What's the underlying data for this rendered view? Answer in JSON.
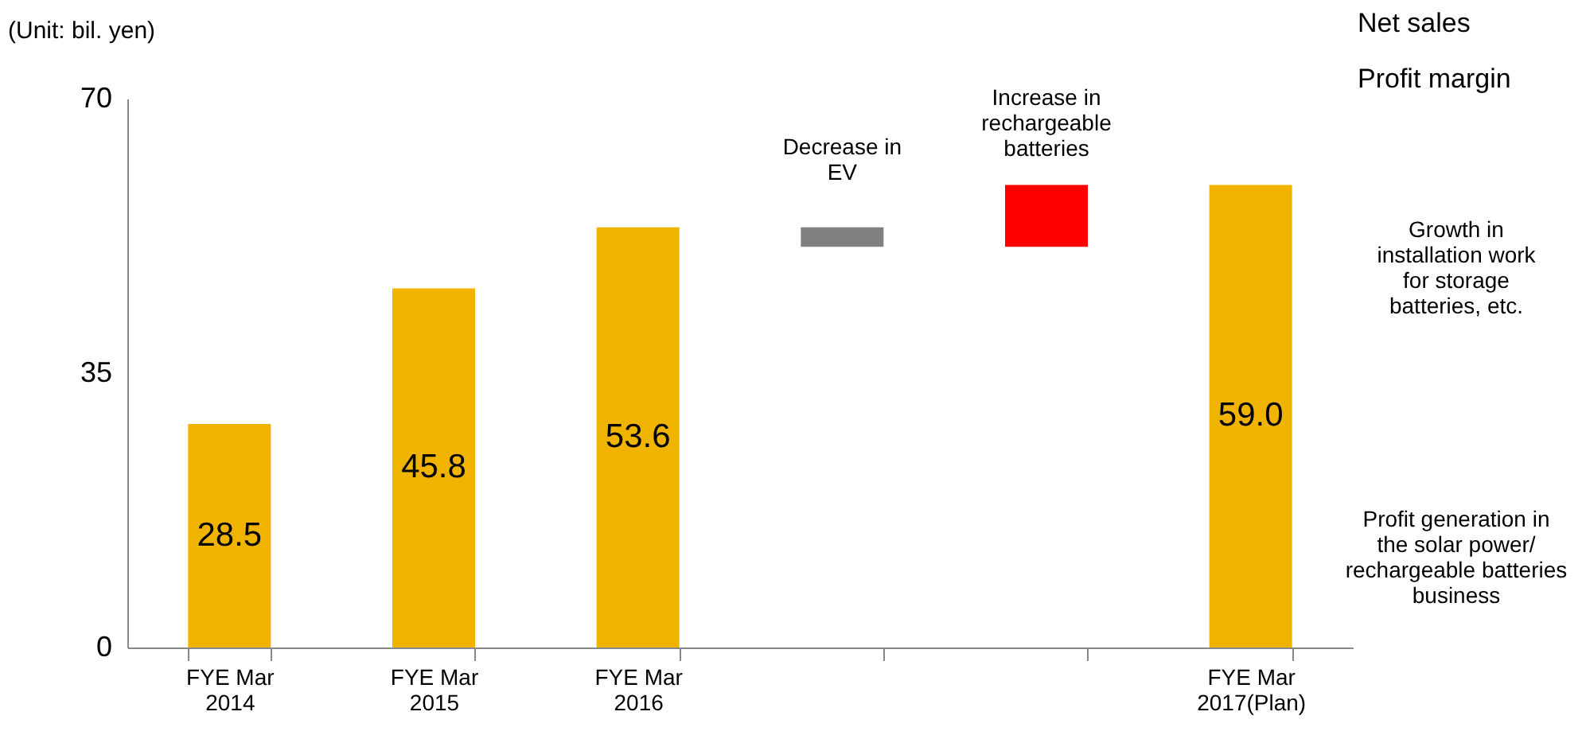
{
  "chart_data": {
    "type": "bar",
    "ylabel": "(Unit: bil. yen)",
    "categories": [
      "FYE Mar 2014",
      "FYE Mar 2015",
      "FYE Mar 2016",
      null,
      null,
      "FYE Mar 2017(Plan)"
    ],
    "values": [
      28.5,
      45.8,
      53.6,
      -2.5,
      7.9,
      59.0
    ],
    "base": [
      0,
      0,
      0,
      53.6,
      51.1,
      0
    ],
    "colors": [
      "#f0b400",
      "#f0b400",
      "#f0b400",
      "#808080",
      "#ff0000",
      "#f0b400"
    ],
    "value_labels": [
      "28.5",
      "45.8",
      "53.6",
      null,
      null,
      "59.0"
    ],
    "ylim": [
      0,
      70
    ],
    "yticks": [
      0,
      35,
      70
    ],
    "grid": false,
    "annotations": [
      "Decrease in EV",
      "Increase in rechargeable batteries",
      "Growth in installation work for storage batteries, etc.",
      "Profit generation in the solar power/ rechargeable batteries business",
      "Net sales",
      "Profit margin"
    ]
  }
}
